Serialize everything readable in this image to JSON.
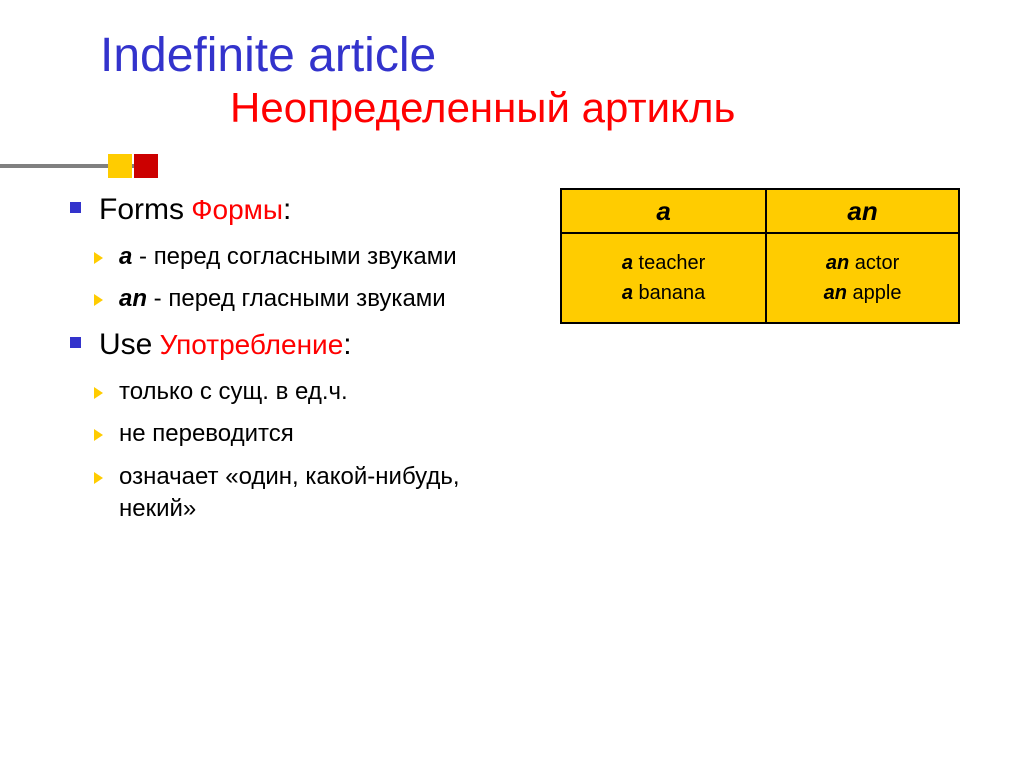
{
  "colors": {
    "title": "#3333cc",
    "subtitle": "#ff0000",
    "bullet_square": "#3333cc",
    "bullet_chevron": "#ffcc00",
    "text": "#000000",
    "table_fill": "#ffcc00",
    "table_border": "#000000",
    "deco_gold": "#ffcc00",
    "deco_red": "#cc0000",
    "deco_bar": "#808080",
    "background": "#ffffff"
  },
  "title": {
    "main": "Indefinite article",
    "sub": "Неопределенный артикль",
    "main_fontsize": 48,
    "sub_fontsize": 42
  },
  "sections": {
    "forms": {
      "label_en": "Forms",
      "label_ru": "Формы",
      "colon": ":",
      "items": [
        {
          "article": "a",
          "sep": " - ",
          "desc": "перед согласными звуками"
        },
        {
          "article": "an",
          "sep": " - ",
          "desc": "перед гласными звуками"
        }
      ]
    },
    "use": {
      "label_en": "Use",
      "label_ru": "Употребление",
      "colon": ":",
      "items": [
        "только с сущ. в ед.ч.",
        "не переводится",
        "означает «один, какой-нибудь, некий»"
      ]
    }
  },
  "table": {
    "headers": [
      "a",
      "an"
    ],
    "rows": [
      [
        [
          {
            "b": "a",
            "t": " teacher"
          },
          {
            "b": "a",
            "t": " banana"
          }
        ],
        [
          {
            "b": "an",
            "t": " actor"
          },
          {
            "b": "an",
            "t": " apple"
          }
        ]
      ]
    ],
    "header_fontsize": 26,
    "cell_fontsize": 20
  }
}
